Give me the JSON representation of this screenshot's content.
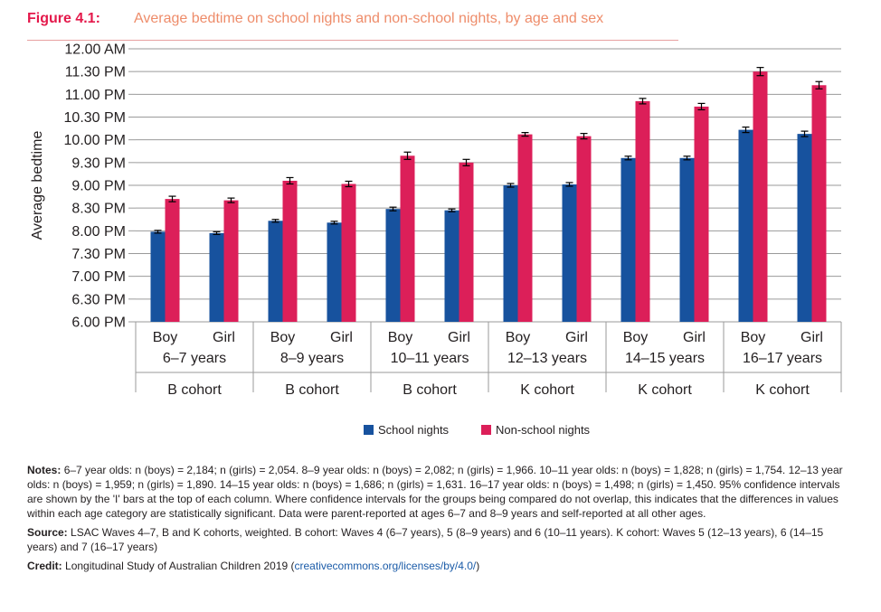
{
  "figure": {
    "label": "Figure 4.1:",
    "title": "Average bedtime on school nights and non-school nights, by age and sex"
  },
  "chart_data": {
    "type": "bar",
    "ylabel": "Average bedtime",
    "y_unit": "hours after 6.00 PM",
    "ylim": [
      0,
      6
    ],
    "yticks": [
      "6.00 PM",
      "6.30 PM",
      "7.00 PM",
      "7.30 PM",
      "8.00 PM",
      "8.30 PM",
      "9.00 PM",
      "9.30 PM",
      "10.00 PM",
      "10.30 PM",
      "11.00 PM",
      "11.30 PM",
      "12.00 AM"
    ],
    "grid": true,
    "error_bars": true,
    "groups": [
      {
        "age": "6–7 years",
        "cohort": "B cohort",
        "sexes": [
          "Boy",
          "Girl"
        ]
      },
      {
        "age": "8–9 years",
        "cohort": "B cohort",
        "sexes": [
          "Boy",
          "Girl"
        ]
      },
      {
        "age": "10–11 years",
        "cohort": "B cohort",
        "sexes": [
          "Boy",
          "Girl"
        ]
      },
      {
        "age": "12–13 years",
        "cohort": "K cohort",
        "sexes": [
          "Boy",
          "Girl"
        ]
      },
      {
        "age": "14–15 years",
        "cohort": "K cohort",
        "sexes": [
          "Boy",
          "Girl"
        ]
      },
      {
        "age": "16–17 years",
        "cohort": "K cohort",
        "sexes": [
          "Boy",
          "Girl"
        ]
      }
    ],
    "series": [
      {
        "name": "School nights",
        "color": "#17529e",
        "values": [
          1.98,
          1.95,
          2.22,
          2.18,
          2.48,
          2.45,
          3.0,
          3.02,
          3.6,
          3.6,
          4.22,
          4.13
        ],
        "errors": [
          0.03,
          0.03,
          0.03,
          0.03,
          0.04,
          0.03,
          0.04,
          0.04,
          0.04,
          0.04,
          0.06,
          0.06
        ]
      },
      {
        "name": "Non-school nights",
        "color": "#dc1f59",
        "values": [
          2.7,
          2.67,
          3.1,
          3.03,
          3.65,
          3.5,
          4.12,
          4.08,
          4.85,
          4.73,
          5.5,
          5.2
        ],
        "errors": [
          0.06,
          0.05,
          0.07,
          0.06,
          0.08,
          0.07,
          0.04,
          0.06,
          0.06,
          0.07,
          0.09,
          0.08
        ]
      }
    ],
    "legend_position": "bottom-center"
  },
  "notes": {
    "notes_label": "Notes:",
    "notes_text": "6–7 year olds: n (boys) = 2,184; n (girls) = 2,054. 8–9 year olds: n (boys) = 2,082; n (girls) = 1,966. 10–11 year olds: n (boys) = 1,828; n (girls) = 1,754. 12–13 year olds: n (boys) = 1,959; n (girls) = 1,890. 14–15 year olds: n (boys) = 1,686; n (girls) = 1,631. 16–17 year olds: n (boys) = 1,498; n (girls) = 1,450. 95% confidence intervals are shown by the 'I' bars at the top of each column. Where confidence intervals for the groups being compared do not overlap, this indicates that the differences in values within each age category are statistically significant. Data were parent-reported at ages 6–7 and 8–9 years and self-reported at all other ages.",
    "source_label": "Source:",
    "source_text": "LSAC Waves 4–7, B and K cohorts, weighted. B cohort: Waves 4 (6–7 years), 5 (8–9 years) and 6 (10–11 years). K cohort: Waves 5 (12–13 years), 6 (14–15 years) and 7 (16–17 years)",
    "credit_label": "Credit:",
    "credit_text": "Longitudinal Study of Australian Children 2019 (",
    "credit_link": "creativecommons.org/licenses/by/4.0/",
    "credit_close": ")"
  }
}
